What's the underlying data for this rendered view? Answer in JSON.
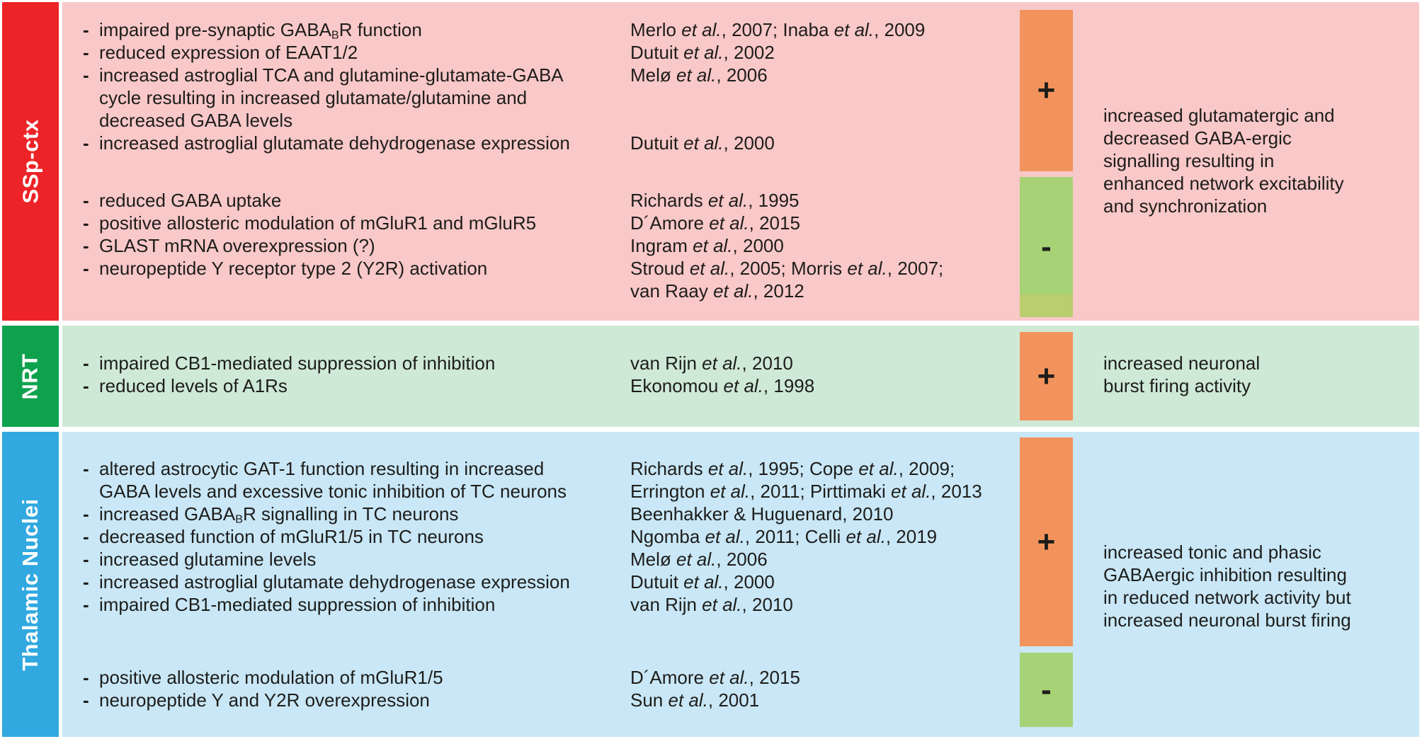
{
  "colors": {
    "page_bg": "#ffffff",
    "text": "#1d1d1b",
    "plus_box": "#f2935d",
    "minus_box": "#a7d276",
    "minus_box_strip": "#bacd6f",
    "label_text": "#ffffff"
  },
  "rows": [
    {
      "id": "ssp-ctx",
      "label": "SSp-ctx",
      "label_bg": "#ec2427",
      "row_bg": "#f9c8c8",
      "groups": [
        {
          "lines": [
            {
              "dash": "-",
              "text": [
                {
                  "t": "impaired pre-synaptic GABA"
                },
                {
                  "t": "B",
                  "style": "sub"
                },
                {
                  "t": "R function"
                }
              ],
              "ref": [
                {
                  "t": "Merlo "
                },
                {
                  "t": "et al.",
                  "style": "i"
                },
                {
                  "t": ", 2007; Inaba "
                },
                {
                  "t": "et al.",
                  "style": "i"
                },
                {
                  "t": ", 2009"
                }
              ]
            },
            {
              "dash": "-",
              "text": "reduced expression of EAAT1/2",
              "ref": [
                {
                  "t": "Dutuit "
                },
                {
                  "t": "et al.",
                  "style": "i"
                },
                {
                  "t": ", 2002"
                }
              ]
            },
            {
              "dash": "-",
              "text": "increased astroglial TCA and glutamine-glutamate-GABA",
              "ref": [
                {
                  "t": "Melø "
                },
                {
                  "t": "et al.",
                  "style": "i"
                },
                {
                  "t": ", 2006"
                }
              ]
            },
            {
              "dash": "",
              "text": "cycle resulting in increased glutamate/glutamine and"
            },
            {
              "dash": "",
              "text": "decreased GABA levels"
            },
            {
              "dash": "-",
              "text": "increased astroglial glutamate dehydrogenase expression",
              "ref": [
                {
                  "t": "Dutuit "
                },
                {
                  "t": "et al.",
                  "style": "i"
                },
                {
                  "t": ", 2000"
                }
              ]
            }
          ]
        },
        {
          "lines": [
            {
              "dash": "-",
              "text": "reduced GABA uptake",
              "ref": [
                {
                  "t": "Richards "
                },
                {
                  "t": "et al.",
                  "style": "i"
                },
                {
                  "t": ", 1995"
                }
              ]
            },
            {
              "dash": "-",
              "text": "positive allosteric modulation of mGluR1 and mGluR5",
              "ref": [
                {
                  "t": "D´Amore "
                },
                {
                  "t": "et al.",
                  "style": "i"
                },
                {
                  "t": ", 2015"
                }
              ]
            },
            {
              "dash": "-",
              "text": "GLAST mRNA overexpression (?)",
              "ref": [
                {
                  "t": "Ingram "
                },
                {
                  "t": "et al.",
                  "style": "i"
                },
                {
                  "t": ", 2000"
                }
              ]
            },
            {
              "dash": "-",
              "text": "neuropeptide Y receptor type 2 (Y2R) activation",
              "ref": [
                {
                  "t": "Stroud "
                },
                {
                  "t": "et al.",
                  "style": "i"
                },
                {
                  "t": ", 2005; Morris "
                },
                {
                  "t": "et al.",
                  "style": "i"
                },
                {
                  "t": ", 2007;"
                }
              ]
            },
            {
              "dash": "",
              "text": "",
              "ref": [
                {
                  "t": "van Raay "
                },
                {
                  "t": "et al.",
                  "style": "i"
                },
                {
                  "t": ", 2012"
                }
              ]
            }
          ]
        }
      ],
      "boxes": [
        {
          "sign": "+"
        },
        {
          "sign": "-"
        }
      ],
      "summary": {
        "lines": [
          "increased glutamatergic and",
          "decreased GABA-ergic",
          "signalling resulting in",
          "enhanced network excitability",
          "and synchronization"
        ]
      }
    },
    {
      "id": "nrt",
      "label": "NRT",
      "label_bg": "#0fa24e",
      "row_bg": "#cee9d6",
      "groups": [
        {
          "lines": [
            {
              "dash": "-",
              "text": "impaired CB1-mediated suppression of inhibition",
              "ref": [
                {
                  "t": "van Rijn "
                },
                {
                  "t": "et al.",
                  "style": "i"
                },
                {
                  "t": ", 2010"
                }
              ]
            },
            {
              "dash": "-",
              "text": "reduced levels of A1Rs",
              "ref": [
                {
                  "t": "Ekonomou "
                },
                {
                  "t": "et al.",
                  "style": "i"
                },
                {
                  "t": ", 1998"
                }
              ]
            }
          ]
        }
      ],
      "boxes": [
        {
          "sign": "+"
        }
      ],
      "summary": {
        "lines": [
          "increased neuronal",
          "burst firing activity"
        ]
      }
    },
    {
      "id": "thalamic-nuclei",
      "label": "Thalamic Nuclei",
      "label_bg": "#31a8e0",
      "row_bg": "#c9e7f6",
      "groups": [
        {
          "lines": [
            {
              "dash": "-",
              "text": "altered astrocytic GAT-1 function resulting in increased",
              "ref": [
                {
                  "t": "Richards "
                },
                {
                  "t": "et al.",
                  "style": "i"
                },
                {
                  "t": ", 1995; Cope "
                },
                {
                  "t": "et al.",
                  "style": "i"
                },
                {
                  "t": ", 2009;"
                }
              ]
            },
            {
              "dash": "",
              "text": "GABA levels and excessive tonic inhibition of TC neurons",
              "ref": [
                {
                  "t": "Errington "
                },
                {
                  "t": "et al.",
                  "style": "i"
                },
                {
                  "t": ", 2011; Pirttimaki "
                },
                {
                  "t": "et al.",
                  "style": "i"
                },
                {
                  "t": ", 2013"
                }
              ]
            },
            {
              "dash": "-",
              "text": [
                {
                  "t": "increased GABA"
                },
                {
                  "t": "B",
                  "style": "sub"
                },
                {
                  "t": "R signalling in TC neurons"
                }
              ],
              "ref": "Beenhakker & Huguenard, 2010"
            },
            {
              "dash": "-",
              "text": "decreased function of mGluR1/5 in TC neurons",
              "ref": [
                {
                  "t": "Ngomba "
                },
                {
                  "t": "et al.",
                  "style": "i"
                },
                {
                  "t": ", 2011; Celli "
                },
                {
                  "t": "et al.",
                  "style": "i"
                },
                {
                  "t": ", 2019"
                }
              ]
            },
            {
              "dash": "-",
              "text": "increased glutamine levels",
              "ref": [
                {
                  "t": "Melø "
                },
                {
                  "t": "et al.",
                  "style": "i"
                },
                {
                  "t": ", 2006"
                }
              ]
            },
            {
              "dash": "-",
              "text": "increased astroglial glutamate dehydrogenase expression",
              "ref": [
                {
                  "t": "Dutuit "
                },
                {
                  "t": "et al.",
                  "style": "i"
                },
                {
                  "t": ", 2000"
                }
              ]
            },
            {
              "dash": "-",
              "text": "impaired CB1-mediated suppression of inhibition",
              "ref": [
                {
                  "t": "van Rijn "
                },
                {
                  "t": "et al.",
                  "style": "i"
                },
                {
                  "t": ", 2010"
                }
              ]
            }
          ]
        },
        {
          "lines": [
            {
              "dash": "-",
              "text": "positive allosteric modulation of mGluR1/5",
              "ref": [
                {
                  "t": "D´Amore "
                },
                {
                  "t": "et al.",
                  "style": "i"
                },
                {
                  "t": ", 2015"
                }
              ]
            },
            {
              "dash": "-",
              "text": "neuropeptide Y and Y2R overexpression",
              "ref": [
                {
                  "t": "Sun "
                },
                {
                  "t": "et al.",
                  "style": "i"
                },
                {
                  "t": ", 2001"
                }
              ]
            }
          ]
        }
      ],
      "boxes": [
        {
          "sign": "+"
        },
        {
          "sign": "-"
        }
      ],
      "summary": {
        "lines": [
          "increased tonic and phasic",
          "GABAergic inhibition resulting",
          "in reduced network activity but",
          "increased neuronal burst firing"
        ]
      }
    }
  ]
}
